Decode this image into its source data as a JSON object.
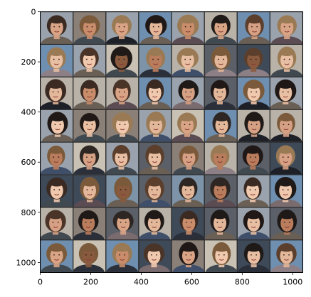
{
  "figure": {
    "x_ticks": [
      "0",
      "200",
      "400",
      "600",
      "800",
      "1000"
    ],
    "y_ticks": [
      "0",
      "200",
      "400",
      "600",
      "800",
      "1000"
    ],
    "x_tick_values": [
      0,
      200,
      400,
      600,
      800,
      1000
    ],
    "y_tick_values": [
      0,
      200,
      400,
      600,
      800,
      1000
    ],
    "x_range": [
      0,
      1040
    ],
    "y_range": [
      0,
      1040
    ],
    "y_inverted": true,
    "grid_rows": 8,
    "grid_cols": 8,
    "image_content": "8x8 grid of generated face images (portrait thumbnails)",
    "colors": {
      "grid_gap": "#2b2b2b",
      "bg_palette": [
        "#6f8fb0",
        "#b8b2a8",
        "#5a5f68",
        "#9aa3ad",
        "#3f4a58",
        "#c9c2b4",
        "#7c93a8",
        "#8a8078"
      ],
      "skin_palette": [
        "#e3b79a",
        "#d9a486",
        "#c98d6c",
        "#efc8ad",
        "#b97c5c",
        "#e8bfa3",
        "#8a5a3f",
        "#d6a084"
      ],
      "hair_palette": [
        "#3a2a22",
        "#5b3f2c",
        "#1f1a18",
        "#7a5a3a",
        "#2e2622",
        "#9a7a55",
        "#4a3428",
        "#201816"
      ],
      "cloth_palette": [
        "#2a2f3a",
        "#5b4b52",
        "#3f4f6a",
        "#6a5f55",
        "#1e2028",
        "#7a6b6f",
        "#404850",
        "#8c7f86"
      ]
    }
  }
}
